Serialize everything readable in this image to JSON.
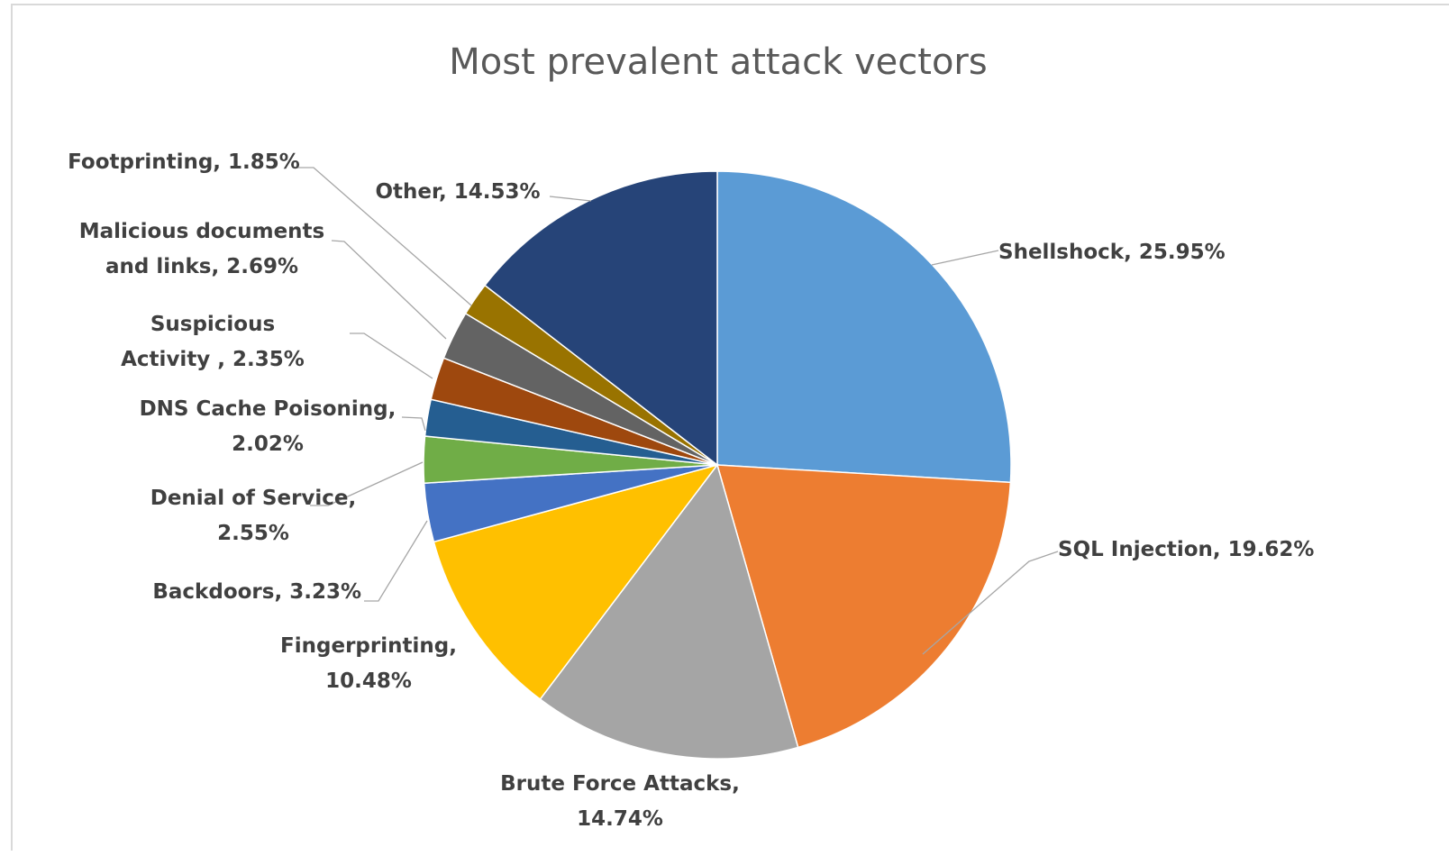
{
  "chart_data": {
    "type": "pie",
    "title": "Most prevalent attack vectors",
    "start_angle_deg": 0,
    "direction": "clockwise",
    "slices": [
      {
        "label": "Shellshock",
        "value": 25.95,
        "color": "#5b9bd5",
        "label_lines": [
          "Shellshock, 25.95%"
        ]
      },
      {
        "label": "SQL Injection",
        "value": 19.62,
        "color": "#ed7d31",
        "label_lines": [
          "SQL Injection, 19.62%"
        ]
      },
      {
        "label": "Brute Force Attacks",
        "value": 14.74,
        "color": "#a5a5a5",
        "label_lines": [
          "Brute Force Attacks,",
          "14.74%"
        ]
      },
      {
        "label": "Fingerprinting",
        "value": 10.48,
        "color": "#ffc000",
        "label_lines": [
          "Fingerprinting,",
          "10.48%"
        ]
      },
      {
        "label": "Backdoors",
        "value": 3.23,
        "color": "#4472c4",
        "label_lines": [
          "Backdoors, 3.23%"
        ]
      },
      {
        "label": "Denial of Service",
        "value": 2.55,
        "color": "#70ad47",
        "label_lines": [
          "Denial of Service,",
          "2.55%"
        ]
      },
      {
        "label": "DNS Cache Poisoning",
        "value": 2.02,
        "color": "#255e91",
        "label_lines": [
          "DNS Cache Poisoning,",
          "2.02%"
        ]
      },
      {
        "label": "Suspicious Activity",
        "value": 2.35,
        "color": "#9e480e",
        "label_lines": [
          "Suspicious",
          "Activity , 2.35%"
        ]
      },
      {
        "label": "Malicious documents and links",
        "value": 2.69,
        "color": "#636363",
        "label_lines": [
          "Malicious documents",
          "and links, 2.69%"
        ]
      },
      {
        "label": "Footprinting",
        "value": 1.85,
        "color": "#997300",
        "label_lines": [
          "Footprinting, 1.85%"
        ]
      },
      {
        "label": "Other",
        "value": 14.53,
        "color": "#264478",
        "label_lines": [
          "Other, 14.53%"
        ]
      }
    ],
    "legend": "none",
    "data_labels": "outside with leader lines"
  }
}
